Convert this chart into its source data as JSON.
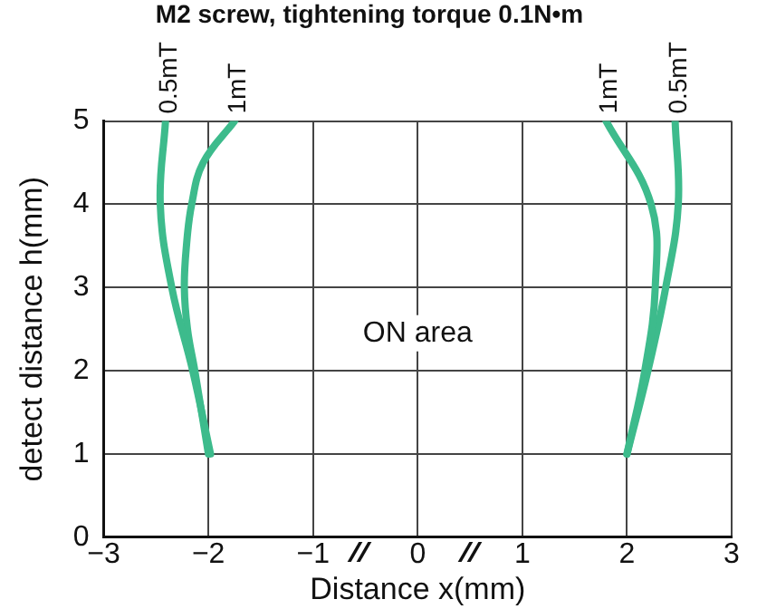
{
  "chart_data": {
    "type": "line",
    "title": "M2 screw, tightening torque 0.1N•m",
    "xlabel": "Distance x(mm)",
    "ylabel": "detect distance h(mm)",
    "series": [
      {
        "name": "0.5mT",
        "color": "#3dbb8c",
        "x": [
          -1.98,
          -2.15,
          -2.35,
          -2.46,
          -2.41
        ],
        "values": [
          1,
          2,
          3,
          4,
          5
        ]
      },
      {
        "name": "1mT",
        "color": "#3dbb8c",
        "x": [
          -2.0,
          -2.13,
          -2.2,
          -2.23,
          -2.21,
          -2.16,
          -2.05,
          -1.75
        ],
        "values": [
          1,
          2,
          2.5,
          3,
          3.5,
          4,
          4.5,
          5
        ]
      },
      {
        "name": "1mT",
        "color": "#3dbb8c",
        "x": [
          2.0,
          2.17,
          2.27,
          2.23,
          1.8
        ],
        "values": [
          1,
          2,
          3,
          4,
          5
        ]
      },
      {
        "name": "0.5mT",
        "color": "#3dbb8c",
        "x": [
          2.0,
          2.2,
          2.37,
          2.49,
          2.46
        ],
        "values": [
          1,
          2,
          3,
          4,
          5
        ]
      }
    ],
    "annotations": [
      "ON area"
    ],
    "xlim": [
      -3,
      3
    ],
    "xticks": [
      -3,
      -2,
      -1,
      0,
      1,
      2,
      3
    ],
    "ylim": [
      0,
      5
    ],
    "yticks": [
      0,
      1,
      2,
      3,
      4,
      5
    ],
    "grid": true,
    "legend": false,
    "marker": "none",
    "line_style": "solid"
  }
}
